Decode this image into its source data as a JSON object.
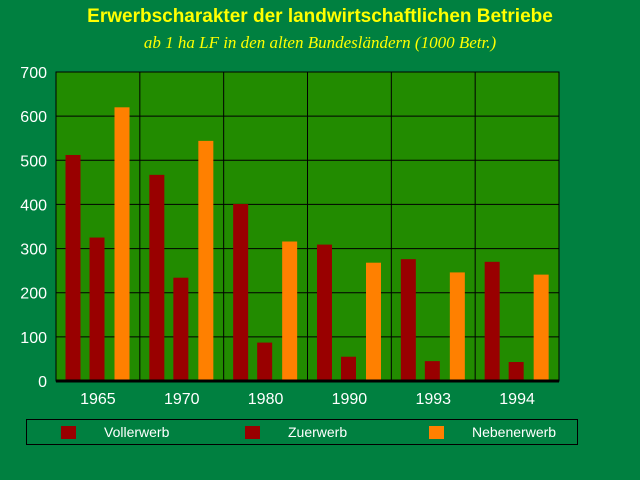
{
  "chart_data": {
    "type": "bar",
    "title": "Erwerbscharakter der landwirtschaftlichen Betriebe",
    "subtitle": "ab 1 ha LF in den alten Bundesländern (1000 Betr.)",
    "categories": [
      "1965",
      "1970",
      "1980",
      "1990",
      "1993",
      "1994"
    ],
    "series": [
      {
        "name": "Vollerwerb",
        "color": "#990000",
        "values": [
          512,
          467,
          401,
          309,
          276,
          270
        ]
      },
      {
        "name": "Zuerwerb",
        "color": "#990000",
        "values": [
          325,
          234,
          87,
          55,
          45,
          43
        ]
      },
      {
        "name": "Nebenerwerb",
        "color": "#ff8000",
        "values": [
          620,
          544,
          316,
          268,
          246,
          241
        ]
      }
    ],
    "y_ticks": [
      "0",
      "100",
      "200",
      "300",
      "400",
      "500",
      "600",
      "700"
    ],
    "ylim": [
      0,
      700
    ],
    "grid": true,
    "legend_position": "bottom",
    "colors": {
      "background": "#008040",
      "plot_area": "#228b00",
      "title": "#ffff00"
    }
  }
}
